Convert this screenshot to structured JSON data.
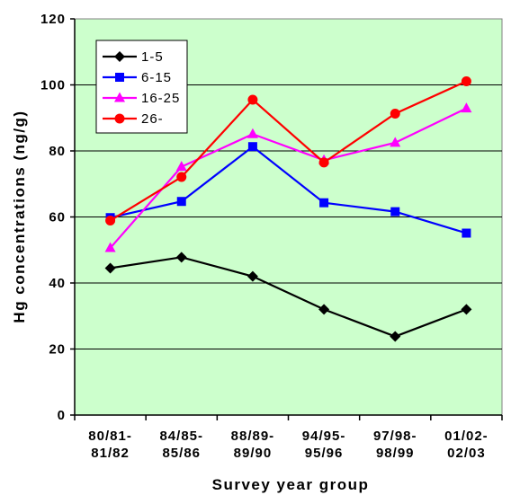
{
  "chart_data": {
    "type": "line",
    "xlabel": "Survey year group",
    "ylabel": "Hg concentrations (ng/g)",
    "ylim": [
      0,
      120
    ],
    "yticks": [
      0,
      20,
      40,
      60,
      80,
      100,
      120
    ],
    "categories": [
      [
        "80/81-",
        "81/82"
      ],
      [
        "84/85-",
        "85/86"
      ],
      [
        "88/89-",
        "89/90"
      ],
      [
        "94/95-",
        "95/96"
      ],
      [
        "97/98-",
        "98/99"
      ],
      [
        "01/02-",
        "02/03"
      ]
    ],
    "grid": "horizontal",
    "legend_position": "top-left",
    "background_color": "#ccffcc",
    "series": [
      {
        "name": "1-5",
        "color": "#000000",
        "marker": "diamond",
        "values": [
          44.5,
          47.8,
          42.0,
          32.0,
          23.8,
          32.0
        ]
      },
      {
        "name": "6-15",
        "color": "#0000ff",
        "marker": "square",
        "values": [
          59.8,
          64.7,
          81.3,
          64.3,
          61.6,
          55.1
        ]
      },
      {
        "name": "16-25",
        "color": "#ff00ff",
        "marker": "triangle",
        "values": [
          50.6,
          75.2,
          85.1,
          77.2,
          82.5,
          92.9
        ]
      },
      {
        "name": "26-",
        "color": "#ff0000",
        "marker": "circle",
        "values": [
          58.9,
          72.1,
          95.5,
          76.5,
          91.3,
          101.1
        ]
      }
    ]
  }
}
